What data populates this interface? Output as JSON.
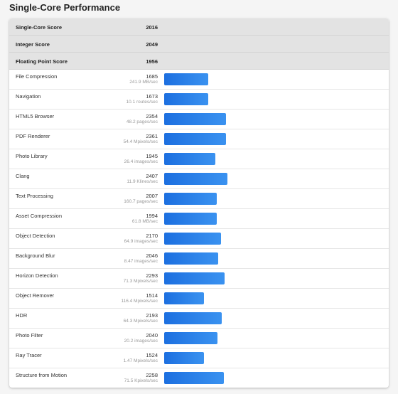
{
  "header": {
    "title": "Single-Core Performance"
  },
  "summary": [
    {
      "label": "Single-Core Score",
      "score": 2016
    },
    {
      "label": "Integer Score",
      "score": 2049
    },
    {
      "label": "Floating Point Score",
      "score": 1956
    }
  ],
  "benchmarks": [
    {
      "name": "File Compression",
      "score": 1685,
      "rate": "241.9 MB/sec"
    },
    {
      "name": "Navigation",
      "score": 1673,
      "rate": "10.1 routes/sec"
    },
    {
      "name": "HTML5 Browser",
      "score": 2354,
      "rate": "48.2 pages/sec"
    },
    {
      "name": "PDF Renderer",
      "score": 2361,
      "rate": "54.4 Mpixels/sec"
    },
    {
      "name": "Photo Library",
      "score": 1945,
      "rate": "26.4 images/sec"
    },
    {
      "name": "Clang",
      "score": 2407,
      "rate": "11.9 Klines/sec"
    },
    {
      "name": "Text Processing",
      "score": 2007,
      "rate": "160.7 pages/sec"
    },
    {
      "name": "Asset Compression",
      "score": 1994,
      "rate": "61.8 MB/sec"
    },
    {
      "name": "Object Detection",
      "score": 2170,
      "rate": "64.9 images/sec"
    },
    {
      "name": "Background Blur",
      "score": 2046,
      "rate": "8.47 images/sec"
    },
    {
      "name": "Horizon Detection",
      "score": 2293,
      "rate": "71.3 Mpixels/sec"
    },
    {
      "name": "Object Remover",
      "score": 1514,
      "rate": "116.4 Mpixels/sec"
    },
    {
      "name": "HDR",
      "score": 2193,
      "rate": "64.3 Mpixels/sec"
    },
    {
      "name": "Photo Filter",
      "score": 2040,
      "rate": "20.2 images/sec"
    },
    {
      "name": "Ray Tracer",
      "score": 1524,
      "rate": "1.47 Mpixels/sec"
    },
    {
      "name": "Structure from Motion",
      "score": 2258,
      "rate": "71.5 Kpixels/sec"
    }
  ]
}
